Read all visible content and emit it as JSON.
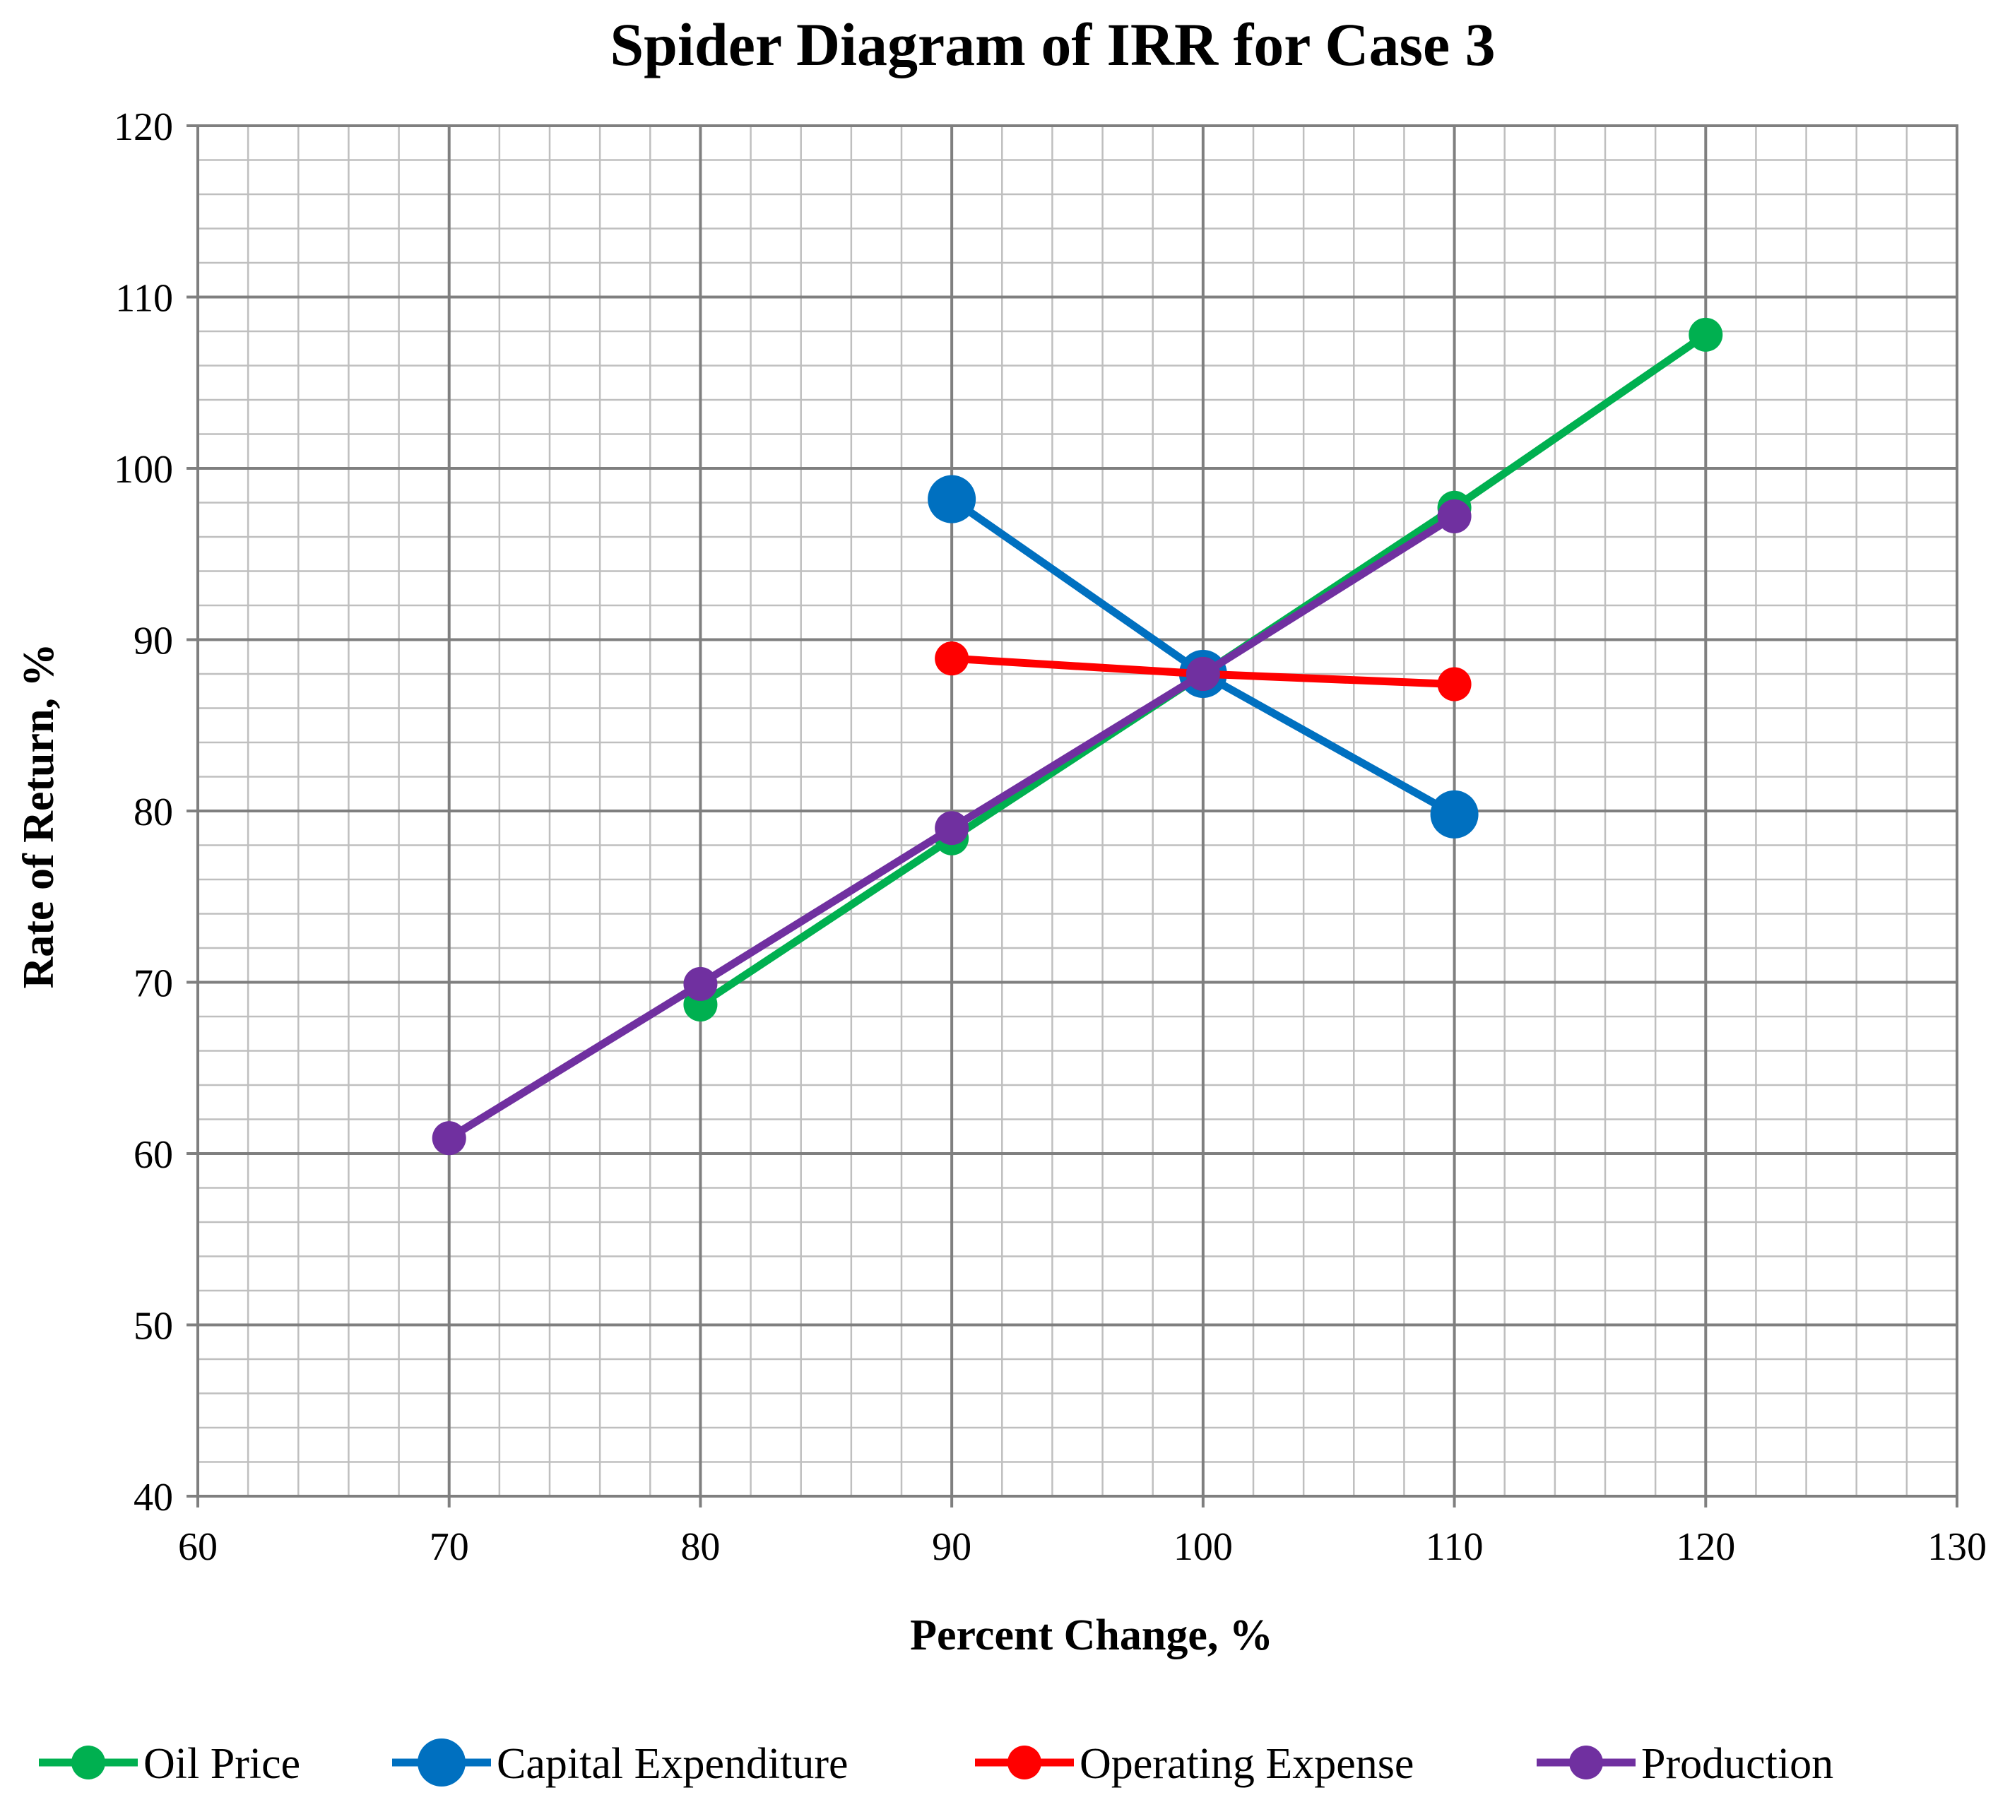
{
  "chart_data": {
    "type": "line",
    "title": "Spider Diagram of IRR for Case 3",
    "xlabel": "Percent Change, %",
    "ylabel": "Rate of Return, %",
    "xlim": [
      60,
      130
    ],
    "ylim": [
      40,
      120
    ],
    "xticks": [
      "60",
      "70",
      "80",
      "90",
      "100",
      "110",
      "120",
      "130"
    ],
    "yticks": [
      "40",
      "50",
      "60",
      "70",
      "80",
      "90",
      "100",
      "110",
      "120"
    ],
    "grid": true,
    "legend_position": "bottom",
    "series": [
      {
        "name": "Oil Price",
        "color": "#00B050",
        "marker_size": "medium",
        "points": [
          [
            80,
            68.7
          ],
          [
            90,
            78.4
          ],
          [
            100,
            88.0
          ],
          [
            110,
            97.7
          ],
          [
            120,
            107.8
          ]
        ]
      },
      {
        "name": "Capital Expenditure",
        "color": "#0070C0",
        "marker_size": "large",
        "points": [
          [
            90,
            98.2
          ],
          [
            100,
            88.0
          ],
          [
            110,
            79.8
          ]
        ]
      },
      {
        "name": "Operating Expense",
        "color": "#FF0000",
        "marker_size": "medium",
        "points": [
          [
            90,
            88.9
          ],
          [
            100,
            88.0
          ],
          [
            110,
            87.4
          ]
        ]
      },
      {
        "name": "Production",
        "color": "#7030A0",
        "marker_size": "medium",
        "points": [
          [
            70,
            60.9
          ],
          [
            80,
            69.9
          ],
          [
            90,
            79.0
          ],
          [
            100,
            88.0
          ],
          [
            110,
            97.2
          ]
        ]
      }
    ]
  }
}
